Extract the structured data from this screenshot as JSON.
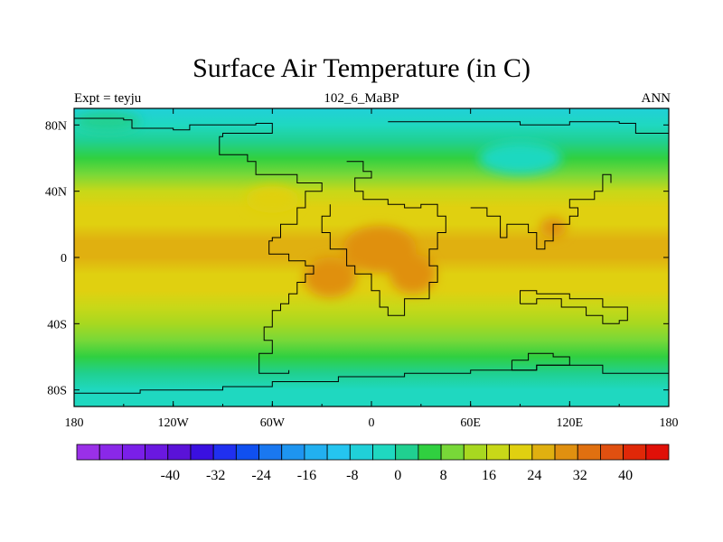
{
  "title": "Surface Air Temperature (in C)",
  "left_string": "Expt = teyju",
  "center_string": "102_6_MaBP",
  "right_string": "ANN",
  "chart_data": {
    "type": "heatmap",
    "title": "Surface Air Temperature (in C)",
    "xlim": [
      -180,
      180
    ],
    "ylim": [
      -90,
      90
    ],
    "x_ticks": [
      {
        "value": -180,
        "label": "180"
      },
      {
        "value": -120,
        "label": "120W"
      },
      {
        "value": -60,
        "label": "60W"
      },
      {
        "value": 0,
        "label": "0"
      },
      {
        "value": 60,
        "label": "60E"
      },
      {
        "value": 120,
        "label": "120E"
      },
      {
        "value": 180,
        "label": "180"
      }
    ],
    "y_ticks": [
      {
        "value": 80,
        "label": "80N"
      },
      {
        "value": 40,
        "label": "40N"
      },
      {
        "value": 0,
        "label": "0"
      },
      {
        "value": -40,
        "label": "40S"
      },
      {
        "value": -80,
        "label": "80S"
      }
    ],
    "zonal_profile": [
      {
        "lat": 90,
        "t": 2
      },
      {
        "lat": 80,
        "t": 4
      },
      {
        "lat": 70,
        "t": 10
      },
      {
        "lat": 60,
        "t": 14
      },
      {
        "lat": 50,
        "t": 19
      },
      {
        "lat": 40,
        "t": 24
      },
      {
        "lat": 30,
        "t": 28
      },
      {
        "lat": 20,
        "t": 31
      },
      {
        "lat": 10,
        "t": 32
      },
      {
        "lat": 0,
        "t": 32
      },
      {
        "lat": -10,
        "t": 31
      },
      {
        "lat": -20,
        "t": 29
      },
      {
        "lat": -30,
        "t": 26
      },
      {
        "lat": -40,
        "t": 22
      },
      {
        "lat": -50,
        "t": 18
      },
      {
        "lat": -60,
        "t": 14
      },
      {
        "lat": -70,
        "t": 9
      },
      {
        "lat": -80,
        "t": 6
      },
      {
        "lat": -90,
        "t": 4
      }
    ],
    "hotspots": [
      {
        "lon": -25,
        "lat": -12,
        "rx": 16,
        "ry": 12,
        "t": 38
      },
      {
        "lon": 5,
        "lat": 5,
        "rx": 22,
        "ry": 14,
        "t": 38
      },
      {
        "lon": 25,
        "lat": -10,
        "rx": 14,
        "ry": 12,
        "t": 37
      },
      {
        "lon": 110,
        "lat": 18,
        "rx": 8,
        "ry": 6,
        "t": 36
      },
      {
        "lon": -60,
        "lat": 35,
        "rx": 16,
        "ry": 8,
        "t": 29
      },
      {
        "lon": 90,
        "lat": 60,
        "rx": 25,
        "ry": 10,
        "t": 6
      },
      {
        "lon": -160,
        "lat": 82,
        "rx": 20,
        "ry": 6,
        "t": 8
      }
    ],
    "coastlines": [
      [
        [
          -180,
          84
        ],
        [
          -150,
          83
        ],
        [
          -145,
          78
        ],
        [
          -120,
          77
        ],
        [
          -110,
          80
        ],
        [
          -70,
          81
        ],
        [
          -60,
          75
        ],
        [
          -90,
          73
        ],
        [
          -92,
          62
        ],
        [
          -75,
          58
        ],
        [
          -70,
          50
        ],
        [
          -45,
          45
        ],
        [
          -30,
          40
        ],
        [
          -40,
          30
        ],
        [
          -45,
          20
        ],
        [
          -55,
          12
        ],
        [
          -60,
          10
        ],
        [
          -62,
          2
        ],
        [
          -50,
          -2
        ],
        [
          -40,
          -5
        ],
        [
          -35,
          -10
        ],
        [
          -40,
          -15
        ],
        [
          -45,
          -22
        ],
        [
          -50,
          -28
        ],
        [
          -55,
          -32
        ],
        [
          -60,
          -42
        ],
        [
          -65,
          -50
        ],
        [
          -60,
          -58
        ],
        [
          -68,
          -70
        ],
        [
          -55,
          -70
        ],
        [
          -50,
          -68
        ]
      ],
      [
        [
          10,
          82
        ],
        [
          60,
          82
        ],
        [
          90,
          80
        ],
        [
          120,
          82
        ],
        [
          150,
          81
        ],
        [
          160,
          75
        ],
        [
          180,
          72
        ]
      ],
      [
        [
          -15,
          58
        ],
        [
          -5,
          52
        ],
        [
          0,
          48
        ],
        [
          -10,
          40
        ],
        [
          -5,
          35
        ],
        [
          10,
          32
        ],
        [
          20,
          30
        ],
        [
          30,
          32
        ],
        [
          40,
          25
        ],
        [
          45,
          15
        ],
        [
          40,
          5
        ],
        [
          35,
          -5
        ],
        [
          40,
          -15
        ],
        [
          35,
          -25
        ],
        [
          20,
          -35
        ],
        [
          10,
          -30
        ],
        [
          5,
          -20
        ],
        [
          0,
          -10
        ],
        [
          -10,
          -5
        ],
        [
          -15,
          5
        ],
        [
          -25,
          15
        ],
        [
          -30,
          25
        ],
        [
          -25,
          32
        ]
      ],
      [
        [
          60,
          30
        ],
        [
          70,
          25
        ],
        [
          78,
          12
        ],
        [
          82,
          20
        ],
        [
          95,
          15
        ],
        [
          100,
          5
        ],
        [
          105,
          10
        ],
        [
          110,
          20
        ],
        [
          120,
          25
        ],
        [
          125,
          30
        ],
        [
          120,
          35
        ],
        [
          135,
          40
        ],
        [
          140,
          50
        ],
        [
          145,
          45
        ]
      ],
      [
        [
          90,
          -28
        ],
        [
          100,
          -25
        ],
        [
          115,
          -30
        ],
        [
          130,
          -35
        ],
        [
          140,
          -40
        ],
        [
          150,
          -38
        ],
        [
          155,
          -30
        ],
        [
          140,
          -25
        ],
        [
          120,
          -22
        ],
        [
          100,
          -20
        ],
        [
          90,
          -28
        ]
      ],
      [
        [
          -180,
          -82
        ],
        [
          -140,
          -80
        ],
        [
          -90,
          -78
        ],
        [
          -60,
          -75
        ],
        [
          -20,
          -72
        ],
        [
          20,
          -70
        ],
        [
          60,
          -68
        ],
        [
          100,
          -65
        ],
        [
          140,
          -70
        ],
        [
          180,
          -80
        ]
      ],
      [
        [
          85,
          -62
        ],
        [
          95,
          -58
        ],
        [
          110,
          -60
        ],
        [
          120,
          -65
        ],
        [
          100,
          -68
        ],
        [
          85,
          -62
        ]
      ]
    ]
  },
  "colorbar": {
    "levels": [
      "-40",
      "-32",
      "-24",
      "-16",
      "-8",
      "0",
      "8",
      "16",
      "24",
      "32",
      "40"
    ],
    "colors": [
      "#9a30e8",
      "#8a28e8",
      "#7a1fe8",
      "#6a18e0",
      "#5a12d8",
      "#3a10e0",
      "#2030f0",
      "#1050f0",
      "#1a78f0",
      "#1e95f0",
      "#22b0f0",
      "#25c5f0",
      "#20d0d8",
      "#1fd8c0",
      "#20d090",
      "#30d040",
      "#78d838",
      "#a8d820",
      "#c8d818",
      "#e0d010",
      "#e0b010",
      "#e09010",
      "#e07010",
      "#e05010",
      "#e02808",
      "#e01008"
    ]
  }
}
